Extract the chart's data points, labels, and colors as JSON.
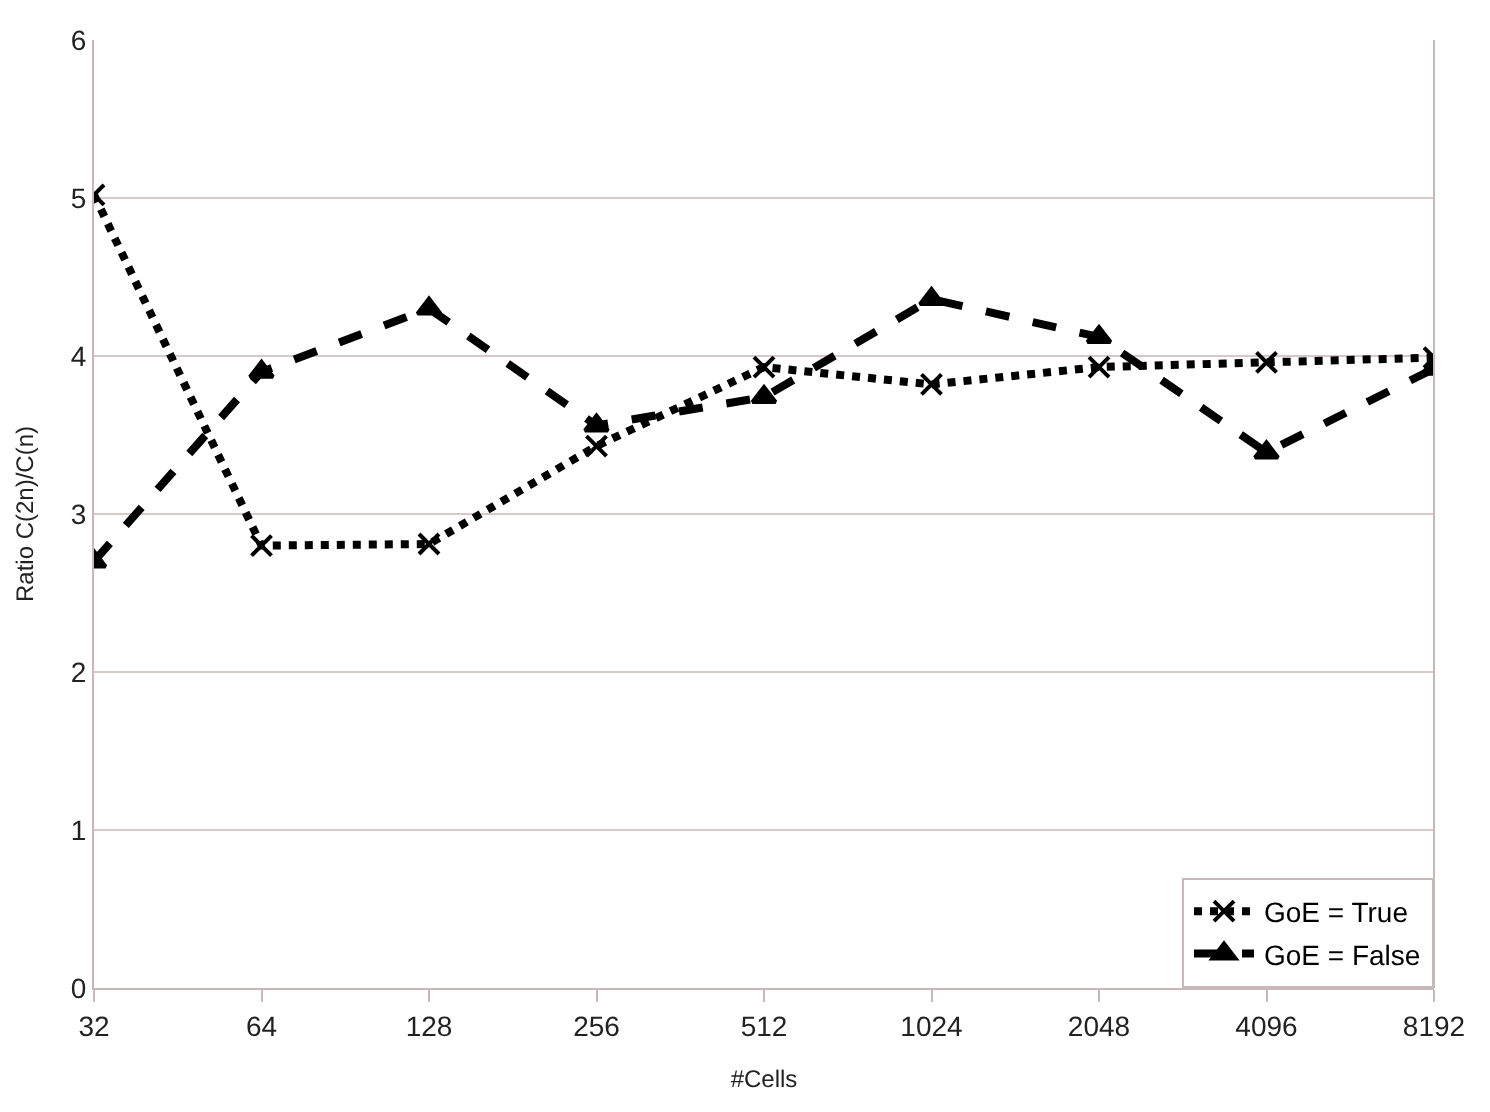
{
  "chart_data": {
    "type": "line",
    "xlabel": "#Cells",
    "ylabel": "Ratio C(2n)/C(n)",
    "categories": [
      "32",
      "64",
      "128",
      "256",
      "512",
      "1024",
      "2048",
      "4096",
      "8192"
    ],
    "series": [
      {
        "name": "GoE = True",
        "color": "#000000",
        "marker": "cross",
        "line_style": "dotted",
        "values": [
          5.02,
          2.8,
          2.81,
          3.43,
          3.93,
          3.82,
          3.93,
          3.96,
          3.99
        ]
      },
      {
        "name": "GoE = False",
        "color": "#000000",
        "marker": "triangle",
        "line_style": "dashed",
        "values": [
          2.7,
          3.9,
          4.3,
          3.56,
          3.74,
          4.36,
          4.12,
          3.39,
          3.92
        ]
      }
    ],
    "ylim": [
      0,
      6
    ],
    "yticks": [
      0,
      1,
      2,
      3,
      4,
      5,
      6
    ],
    "grid": "y",
    "legend": "bottom right"
  }
}
